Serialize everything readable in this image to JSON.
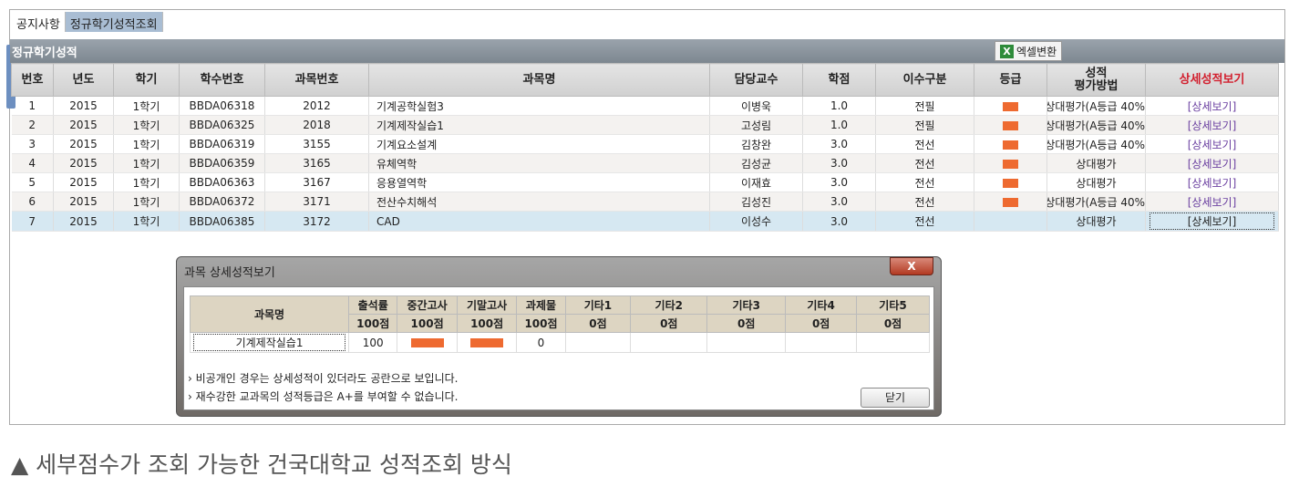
{
  "tabs": [
    "공지사항",
    "정규학기성적조회"
  ],
  "section_title": "정규학기성적",
  "excel_button": "엑셀변환",
  "columns": [
    "번호",
    "년도",
    "학기",
    "학수번호",
    "과목번호",
    "과목명",
    "담당교수",
    "학점",
    "이수구분",
    "등급",
    "성적\n평가방법",
    "상세성적보기"
  ],
  "rows": [
    {
      "no": "1",
      "year": "2015",
      "term": "1학기",
      "code": "BBDA06318",
      "subj_no": "2012",
      "name": "기계공학실험3",
      "prof": "이병욱",
      "credit": "1.0",
      "type": "전필",
      "grade_hidden": true,
      "method": "상대평가(A등급 40%",
      "detail": "[상세보기]"
    },
    {
      "no": "2",
      "year": "2015",
      "term": "1학기",
      "code": "BBDA06325",
      "subj_no": "2018",
      "name": "기계제작실습1",
      "prof": "고성림",
      "credit": "1.0",
      "type": "전필",
      "grade_hidden": true,
      "method": "상대평가(A등급 40%",
      "detail": "[상세보기]"
    },
    {
      "no": "3",
      "year": "2015",
      "term": "1학기",
      "code": "BBDA06319",
      "subj_no": "3155",
      "name": "기계요소설계",
      "prof": "김창완",
      "credit": "3.0",
      "type": "전선",
      "grade_hidden": true,
      "method": "상대평가(A등급 40%",
      "detail": "[상세보기]"
    },
    {
      "no": "4",
      "year": "2015",
      "term": "1학기",
      "code": "BBDA06359",
      "subj_no": "3165",
      "name": "유체역학",
      "prof": "김성균",
      "credit": "3.0",
      "type": "전선",
      "grade_hidden": true,
      "method": "상대평가",
      "detail": "[상세보기]"
    },
    {
      "no": "5",
      "year": "2015",
      "term": "1학기",
      "code": "BBDA06363",
      "subj_no": "3167",
      "name": "응용열역학",
      "prof": "이재효",
      "credit": "3.0",
      "type": "전선",
      "grade_hidden": true,
      "method": "상대평가",
      "detail": "[상세보기]"
    },
    {
      "no": "6",
      "year": "2015",
      "term": "1학기",
      "code": "BBDA06372",
      "subj_no": "3171",
      "name": "전산수치해석",
      "prof": "김성진",
      "credit": "3.0",
      "type": "전선",
      "grade_hidden": true,
      "method": "상대평가(A등급 40%",
      "detail": "[상세보기]"
    },
    {
      "no": "7",
      "year": "2015",
      "term": "1학기",
      "code": "BBDA06385",
      "subj_no": "3172",
      "name": "CAD",
      "prof": "이성수",
      "credit": "3.0",
      "type": "전선",
      "grade_hidden": false,
      "method": "상대평가",
      "detail": "[상세보기]",
      "selected": true
    }
  ],
  "dialog": {
    "title": "과목 상세성적보기",
    "close_icon": "X",
    "headers": [
      "과목명",
      "출석률",
      "중간고사",
      "기말고사",
      "과제물",
      "기타1",
      "기타2",
      "기타3",
      "기타4",
      "기타5"
    ],
    "max_scores": [
      "100점",
      "100점",
      "100점",
      "100점",
      "0점",
      "0점",
      "0점",
      "0점",
      "0점"
    ],
    "row": {
      "name": "기계제작실습1",
      "values": [
        "100",
        "",
        "",
        "0",
        "",
        "",
        "",
        "",
        ""
      ],
      "hidden": [
        false,
        true,
        true,
        false,
        false,
        false,
        false,
        false,
        false
      ]
    },
    "notes": [
      "› 비공개인 경우는 상세성적이 있더라도 공란으로 보입니다.",
      "› 재수강한 교과목의 성적등급은  A+를 부여할 수 없습니다."
    ],
    "close_button": "닫기"
  },
  "caption": "▲ 세부점수가 조회 가능한 건국대학교 성적조회 방식",
  "colors": {
    "masked": "#ee6a30",
    "link": "#6a3fa0",
    "header_red": "#d21f2e"
  }
}
